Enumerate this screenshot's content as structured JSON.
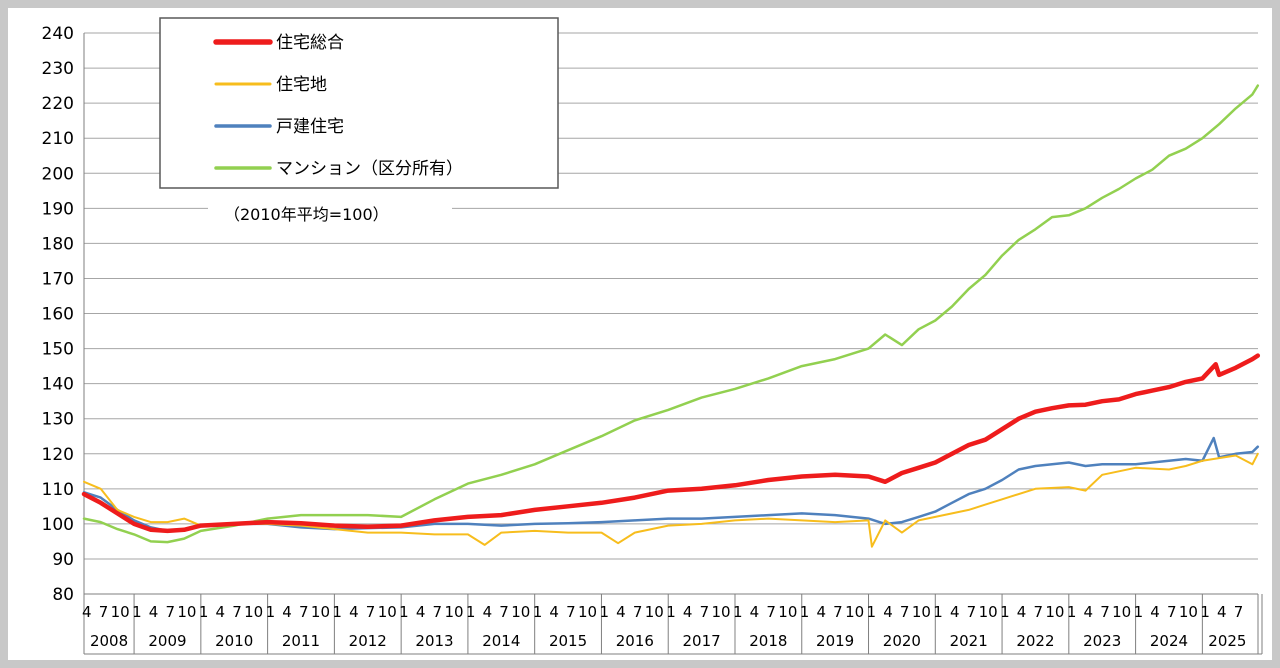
{
  "chart_data": {
    "type": "line",
    "note": "（2010年平均=100）",
    "ylim": [
      80,
      240
    ],
    "yticks": [
      80,
      90,
      100,
      110,
      120,
      130,
      140,
      150,
      160,
      170,
      180,
      190,
      200,
      210,
      220,
      230,
      240
    ],
    "grid": true,
    "legend_position": "top-left",
    "month_tick_labels": [
      "1",
      "4",
      "7",
      "10"
    ],
    "years": [
      "2008",
      "2009",
      "2010",
      "2011",
      "2012",
      "2013",
      "2014",
      "2015",
      "2016",
      "2017",
      "2018",
      "2019",
      "2020",
      "2021",
      "2022",
      "2023",
      "2024",
      "2025"
    ],
    "first_year_start_month": 4,
    "last_year_end_month": 9,
    "series": [
      {
        "name": "住宅総合",
        "color": "#ee1c1c",
        "width": 4.5,
        "points": [
          [
            2008.25,
            108.5
          ],
          [
            2008.5,
            106
          ],
          [
            2008.75,
            103
          ],
          [
            2009.0,
            100
          ],
          [
            2009.25,
            98.3
          ],
          [
            2009.5,
            98
          ],
          [
            2009.75,
            98.3
          ],
          [
            2010.0,
            99.5
          ],
          [
            2010.5,
            100
          ],
          [
            2011.0,
            100.5
          ],
          [
            2011.5,
            100.2
          ],
          [
            2012.0,
            99.5
          ],
          [
            2012.5,
            99.2
          ],
          [
            2013.0,
            99.5
          ],
          [
            2013.5,
            101
          ],
          [
            2014.0,
            102
          ],
          [
            2014.5,
            102.5
          ],
          [
            2015.0,
            104
          ],
          [
            2015.5,
            105
          ],
          [
            2016.0,
            106
          ],
          [
            2016.5,
            107.5
          ],
          [
            2017.0,
            109.5
          ],
          [
            2017.5,
            110
          ],
          [
            2018.0,
            111
          ],
          [
            2018.5,
            112.5
          ],
          [
            2019.0,
            113.5
          ],
          [
            2019.5,
            114
          ],
          [
            2020.0,
            113.5
          ],
          [
            2020.25,
            112
          ],
          [
            2020.5,
            114.5
          ],
          [
            2020.75,
            116
          ],
          [
            2021.0,
            117.5
          ],
          [
            2021.25,
            120
          ],
          [
            2021.5,
            122.5
          ],
          [
            2021.75,
            124
          ],
          [
            2022.0,
            127
          ],
          [
            2022.25,
            130
          ],
          [
            2022.5,
            132
          ],
          [
            2022.75,
            133
          ],
          [
            2023.0,
            133.8
          ],
          [
            2023.25,
            134
          ],
          [
            2023.5,
            135
          ],
          [
            2023.75,
            135.5
          ],
          [
            2024.0,
            137
          ],
          [
            2024.25,
            138
          ],
          [
            2024.5,
            139
          ],
          [
            2024.75,
            140.5
          ],
          [
            2025.0,
            141.5
          ],
          [
            2025.2,
            145.5
          ],
          [
            2025.25,
            142.5
          ],
          [
            2025.5,
            144.5
          ],
          [
            2025.75,
            147
          ],
          [
            2025.83,
            148
          ]
        ]
      },
      {
        "name": "住宅地",
        "color": "#f7bd1d",
        "width": 2,
        "points": [
          [
            2008.25,
            112
          ],
          [
            2008.5,
            110
          ],
          [
            2008.75,
            104
          ],
          [
            2009.0,
            102
          ],
          [
            2009.25,
            100.5
          ],
          [
            2009.5,
            100.5
          ],
          [
            2009.75,
            101.5
          ],
          [
            2010.0,
            99.5
          ],
          [
            2010.5,
            100
          ],
          [
            2011.0,
            100
          ],
          [
            2011.5,
            99.5
          ],
          [
            2012.0,
            98.5
          ],
          [
            2012.5,
            97.5
          ],
          [
            2013.0,
            97.5
          ],
          [
            2013.5,
            97
          ],
          [
            2014.0,
            97
          ],
          [
            2014.25,
            94
          ],
          [
            2014.5,
            97.5
          ],
          [
            2015.0,
            98
          ],
          [
            2015.5,
            97.5
          ],
          [
            2016.0,
            97.5
          ],
          [
            2016.25,
            94.5
          ],
          [
            2016.5,
            97.5
          ],
          [
            2017.0,
            99.5
          ],
          [
            2017.5,
            100
          ],
          [
            2018.0,
            101
          ],
          [
            2018.5,
            101.5
          ],
          [
            2019.0,
            101
          ],
          [
            2019.5,
            100.5
          ],
          [
            2020.0,
            101
          ],
          [
            2020.05,
            93.5
          ],
          [
            2020.25,
            101
          ],
          [
            2020.5,
            97.5
          ],
          [
            2020.75,
            101
          ],
          [
            2021.0,
            102
          ],
          [
            2021.5,
            104
          ],
          [
            2021.75,
            105.5
          ],
          [
            2022.0,
            107
          ],
          [
            2022.5,
            110
          ],
          [
            2023.0,
            110.5
          ],
          [
            2023.25,
            109.5
          ],
          [
            2023.5,
            114
          ],
          [
            2023.75,
            115
          ],
          [
            2024.0,
            116
          ],
          [
            2024.5,
            115.5
          ],
          [
            2024.75,
            116.5
          ],
          [
            2025.0,
            118
          ],
          [
            2025.5,
            119.5
          ],
          [
            2025.75,
            117
          ],
          [
            2025.83,
            120
          ]
        ]
      },
      {
        "name": "戸建住宅",
        "color": "#4f81bd",
        "width": 2.5,
        "points": [
          [
            2008.25,
            109
          ],
          [
            2008.5,
            107.5
          ],
          [
            2008.75,
            104
          ],
          [
            2009.0,
            101
          ],
          [
            2009.25,
            99
          ],
          [
            2009.5,
            98
          ],
          [
            2009.75,
            98.5
          ],
          [
            2010.0,
            99.5
          ],
          [
            2010.5,
            100
          ],
          [
            2011.0,
            100
          ],
          [
            2011.5,
            99
          ],
          [
            2012.0,
            98.5
          ],
          [
            2012.5,
            98.8
          ],
          [
            2013.0,
            99
          ],
          [
            2013.5,
            100
          ],
          [
            2014.0,
            100
          ],
          [
            2014.5,
            99.5
          ],
          [
            2015.0,
            100
          ],
          [
            2015.5,
            100.2
          ],
          [
            2016.0,
            100.5
          ],
          [
            2016.5,
            101
          ],
          [
            2017.0,
            101.5
          ],
          [
            2017.5,
            101.5
          ],
          [
            2018.0,
            102
          ],
          [
            2018.5,
            102.5
          ],
          [
            2019.0,
            103
          ],
          [
            2019.5,
            102.5
          ],
          [
            2020.0,
            101.5
          ],
          [
            2020.25,
            100
          ],
          [
            2020.5,
            100.5
          ],
          [
            2020.75,
            102
          ],
          [
            2021.0,
            103.5
          ],
          [
            2021.25,
            106
          ],
          [
            2021.5,
            108.5
          ],
          [
            2021.75,
            110
          ],
          [
            2022.0,
            112.5
          ],
          [
            2022.25,
            115.5
          ],
          [
            2022.5,
            116.5
          ],
          [
            2022.75,
            117
          ],
          [
            2023.0,
            117.5
          ],
          [
            2023.25,
            116.5
          ],
          [
            2023.5,
            117
          ],
          [
            2023.75,
            117
          ],
          [
            2024.0,
            117
          ],
          [
            2024.25,
            117.5
          ],
          [
            2024.5,
            118
          ],
          [
            2024.75,
            118.5
          ],
          [
            2025.0,
            118
          ],
          [
            2025.17,
            124.5
          ],
          [
            2025.25,
            119
          ],
          [
            2025.5,
            120
          ],
          [
            2025.75,
            120.5
          ],
          [
            2025.83,
            122
          ]
        ]
      },
      {
        "name": "マンション（区分所有）",
        "color": "#92d050",
        "width": 2.5,
        "points": [
          [
            2008.25,
            101.5
          ],
          [
            2008.5,
            100.5
          ],
          [
            2008.75,
            98.5
          ],
          [
            2009.0,
            97
          ],
          [
            2009.25,
            95
          ],
          [
            2009.5,
            94.8
          ],
          [
            2009.75,
            95.8
          ],
          [
            2010.0,
            98
          ],
          [
            2010.5,
            99.5
          ],
          [
            2011.0,
            101.5
          ],
          [
            2011.5,
            102.5
          ],
          [
            2012.0,
            102.5
          ],
          [
            2012.5,
            102.5
          ],
          [
            2013.0,
            102
          ],
          [
            2013.5,
            107
          ],
          [
            2014.0,
            111.5
          ],
          [
            2014.5,
            114
          ],
          [
            2015.0,
            117
          ],
          [
            2015.5,
            121
          ],
          [
            2016.0,
            125
          ],
          [
            2016.5,
            129.5
          ],
          [
            2017.0,
            132.5
          ],
          [
            2017.5,
            136
          ],
          [
            2018.0,
            138.5
          ],
          [
            2018.5,
            141.5
          ],
          [
            2019.0,
            145
          ],
          [
            2019.5,
            147
          ],
          [
            2020.0,
            150
          ],
          [
            2020.25,
            154
          ],
          [
            2020.5,
            151
          ],
          [
            2020.75,
            155.5
          ],
          [
            2021.0,
            158
          ],
          [
            2021.25,
            162
          ],
          [
            2021.5,
            167
          ],
          [
            2021.75,
            171
          ],
          [
            2022.0,
            176.5
          ],
          [
            2022.25,
            181
          ],
          [
            2022.5,
            184
          ],
          [
            2022.75,
            187.5
          ],
          [
            2023.0,
            188
          ],
          [
            2023.25,
            190
          ],
          [
            2023.5,
            193
          ],
          [
            2023.75,
            195.5
          ],
          [
            2024.0,
            198.5
          ],
          [
            2024.25,
            201
          ],
          [
            2024.5,
            205
          ],
          [
            2024.75,
            207
          ],
          [
            2025.0,
            210
          ],
          [
            2025.25,
            214
          ],
          [
            2025.5,
            218.5
          ],
          [
            2025.75,
            222.5
          ],
          [
            2025.83,
            225
          ]
        ]
      }
    ]
  }
}
